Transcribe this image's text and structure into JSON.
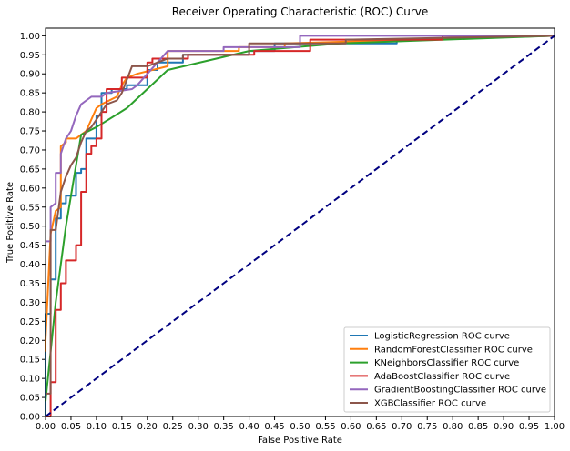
{
  "chart_data": {
    "type": "line",
    "title": "Receiver Operating Characteristic (ROC) Curve",
    "xlabel": "False Positive Rate",
    "ylabel": "True Positive Rate",
    "xlim": [
      0,
      1
    ],
    "ylim": [
      0,
      1.02
    ],
    "x_ticks": [
      "0.00",
      "0.05",
      "0.10",
      "0.15",
      "0.20",
      "0.25",
      "0.30",
      "0.35",
      "0.40",
      "0.45",
      "0.50",
      "0.55",
      "0.60",
      "0.65",
      "0.70",
      "0.75",
      "0.80",
      "0.85",
      "0.90",
      "0.95",
      "1.00"
    ],
    "y_ticks": [
      "0.00",
      "0.05",
      "0.10",
      "0.15",
      "0.20",
      "0.25",
      "0.30",
      "0.35",
      "0.40",
      "0.45",
      "0.50",
      "0.55",
      "0.60",
      "0.65",
      "0.70",
      "0.75",
      "0.80",
      "0.85",
      "0.90",
      "0.95",
      "1.00"
    ],
    "legend_position": "lower-right",
    "grid": false,
    "series": [
      {
        "name": "LogisticRegression ROC curve",
        "color": "#1f77b4",
        "x": [
          0,
          0,
          0.01,
          0.01,
          0.02,
          0.02,
          0.03,
          0.03,
          0.04,
          0.04,
          0.06,
          0.06,
          0.07,
          0.07,
          0.08,
          0.08,
          0.1,
          0.1,
          0.11,
          0.11,
          0.13,
          0.13,
          0.16,
          0.16,
          0.2,
          0.2,
          0.22,
          0.22,
          0.27,
          0.27,
          0.4,
          0.4,
          0.45,
          0.45,
          0.6,
          0.6,
          0.69,
          0.69,
          1.0
        ],
        "y": [
          0,
          0.27,
          0.27,
          0.36,
          0.36,
          0.52,
          0.52,
          0.56,
          0.56,
          0.58,
          0.58,
          0.64,
          0.64,
          0.65,
          0.65,
          0.73,
          0.73,
          0.79,
          0.79,
          0.85,
          0.85,
          0.86,
          0.86,
          0.87,
          0.87,
          0.91,
          0.91,
          0.93,
          0.93,
          0.95,
          0.95,
          0.96,
          0.96,
          0.98,
          0.98,
          0.98,
          0.98,
          0.99,
          1.0
        ]
      },
      {
        "name": "RandomForestClassifier ROC curve",
        "color": "#ff7f0e",
        "x": [
          0,
          0,
          0.01,
          0.02,
          0.03,
          0.03,
          0.04,
          0.04,
          0.06,
          0.07,
          0.08,
          0.09,
          0.1,
          0.11,
          0.14,
          0.15,
          0.16,
          0.18,
          0.24,
          0.24,
          0.38,
          0.38,
          0.47,
          0.47,
          1.0
        ],
        "y": [
          0.17,
          0.2,
          0.48,
          0.54,
          0.55,
          0.71,
          0.72,
          0.73,
          0.73,
          0.74,
          0.75,
          0.78,
          0.81,
          0.82,
          0.84,
          0.87,
          0.89,
          0.9,
          0.92,
          0.96,
          0.96,
          0.97,
          0.97,
          0.98,
          1.0
        ]
      },
      {
        "name": "KNeighborsClassifier ROC curve",
        "color": "#2ca02c",
        "x": [
          0,
          0.02,
          0.04,
          0.07,
          0.1,
          0.16,
          0.24,
          0.4,
          0.58,
          1.0
        ],
        "y": [
          0.04,
          0.3,
          0.5,
          0.74,
          0.76,
          0.81,
          0.91,
          0.96,
          0.98,
          1.0
        ]
      },
      {
        "name": "AdaBoostClassifier ROC curve",
        "color": "#d62728",
        "x": [
          0,
          0.01,
          0.01,
          0.02,
          0.02,
          0.03,
          0.03,
          0.04,
          0.04,
          0.06,
          0.06,
          0.07,
          0.07,
          0.08,
          0.08,
          0.09,
          0.09,
          0.1,
          0.1,
          0.11,
          0.11,
          0.12,
          0.12,
          0.13,
          0.13,
          0.15,
          0.15,
          0.2,
          0.2,
          0.21,
          0.21,
          0.28,
          0.28,
          0.41,
          0.41,
          0.52,
          0.52,
          0.78,
          0.78,
          1.0
        ],
        "y": [
          0,
          0,
          0.09,
          0.09,
          0.28,
          0.28,
          0.35,
          0.35,
          0.41,
          0.41,
          0.45,
          0.45,
          0.59,
          0.59,
          0.69,
          0.69,
          0.71,
          0.71,
          0.73,
          0.73,
          0.8,
          0.8,
          0.86,
          0.86,
          0.86,
          0.86,
          0.89,
          0.89,
          0.93,
          0.93,
          0.94,
          0.94,
          0.95,
          0.95,
          0.96,
          0.96,
          0.99,
          0.99,
          1.0,
          1.0
        ]
      },
      {
        "name": "GradientBoostingClassifier ROC curve",
        "color": "#9467bd",
        "x": [
          0,
          0.01,
          0.01,
          0.02,
          0.02,
          0.03,
          0.03,
          0.04,
          0.05,
          0.06,
          0.07,
          0.08,
          0.09,
          0.11,
          0.12,
          0.17,
          0.18,
          0.22,
          0.24,
          0.35,
          0.35,
          0.5,
          0.5,
          1.0
        ],
        "y": [
          0.46,
          0.46,
          0.55,
          0.56,
          0.64,
          0.64,
          0.69,
          0.73,
          0.75,
          0.79,
          0.82,
          0.83,
          0.84,
          0.84,
          0.85,
          0.86,
          0.87,
          0.93,
          0.96,
          0.96,
          0.97,
          0.97,
          1.0,
          1.0
        ]
      },
      {
        "name": "XGBClassifier ROC curve",
        "color": "#8c564b",
        "x": [
          0,
          0.01,
          0.01,
          0.02,
          0.03,
          0.04,
          0.05,
          0.06,
          0.07,
          0.08,
          0.09,
          0.1,
          0.12,
          0.14,
          0.15,
          0.17,
          0.2,
          0.22,
          0.24,
          0.27,
          0.27,
          0.4,
          0.4,
          0.59,
          0.59,
          1.0
        ],
        "y": [
          0.06,
          0.06,
          0.49,
          0.49,
          0.59,
          0.63,
          0.66,
          0.68,
          0.72,
          0.75,
          0.76,
          0.78,
          0.82,
          0.83,
          0.85,
          0.92,
          0.92,
          0.93,
          0.94,
          0.94,
          0.95,
          0.95,
          0.98,
          0.98,
          0.99,
          1.0
        ]
      },
      {
        "name": "",
        "color": "#000080",
        "dashed": true,
        "x": [
          0,
          1
        ],
        "y": [
          0,
          1
        ]
      }
    ]
  }
}
